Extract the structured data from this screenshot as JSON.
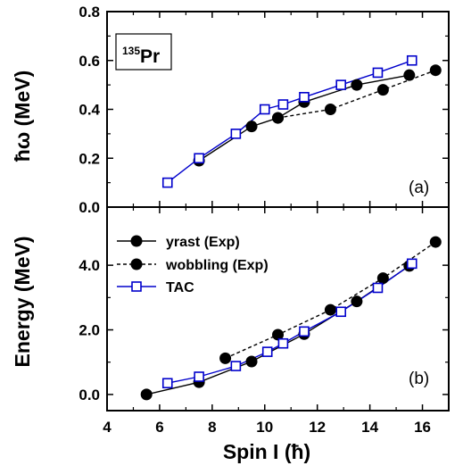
{
  "chart_data": [
    {
      "type": "line",
      "panel_label": "(a)",
      "ylabel": "ħω (MeV)",
      "xlim": [
        4,
        17
      ],
      "ylim": [
        0.0,
        0.8
      ],
      "xticks": [
        "4",
        "6",
        "8",
        "10",
        "12",
        "14",
        "16"
      ],
      "yticks": [
        "0.0",
        "0.2",
        "0.4",
        "0.6",
        "0.8"
      ],
      "nucleus": {
        "mass": "135",
        "symbol": "Pr"
      },
      "series": [
        {
          "key": "yrast",
          "color": "#000000",
          "marker": "filled-circle",
          "line": "solid",
          "x": [
            7.5,
            9.5,
            10.5,
            11.5,
            13.5,
            15.5
          ],
          "y": [
            0.19,
            0.33,
            0.365,
            0.43,
            0.5,
            0.54
          ]
        },
        {
          "key": "wobbling",
          "color": "#000000",
          "marker": "filled-circle",
          "line": "dashed",
          "x": [
            10.5,
            12.5,
            14.5,
            16.5
          ],
          "y": [
            0.365,
            0.4,
            0.48,
            0.56
          ]
        },
        {
          "key": "tac",
          "color": "#0000cc",
          "marker": "open-square",
          "line": "solid",
          "x": [
            6.3,
            7.5,
            8.9,
            10.0,
            10.7,
            11.5,
            12.9,
            14.3,
            15.6
          ],
          "y": [
            0.1,
            0.2,
            0.3,
            0.4,
            0.42,
            0.45,
            0.5,
            0.55,
            0.6
          ]
        }
      ]
    },
    {
      "type": "line",
      "panel_label": "(b)",
      "xlabel": "Spin I (ħ)",
      "ylabel": "Energy (MeV)",
      "xlim": [
        4,
        17
      ],
      "ylim": [
        -0.5,
        5.8
      ],
      "xticks": [
        "4",
        "6",
        "8",
        "10",
        "12",
        "14",
        "16"
      ],
      "yticks": [
        "0.0",
        "2.0",
        "4.0"
      ],
      "legend": {
        "placement": "top-left",
        "entries": [
          "yrast (Exp)",
          "wobbling (Exp)",
          "TAC"
        ]
      },
      "series": [
        {
          "key": "yrast",
          "name": "yrast (Exp)",
          "color": "#000000",
          "marker": "filled-circle",
          "line": "solid",
          "x": [
            5.5,
            7.5,
            9.5,
            11.5,
            13.5,
            15.5
          ],
          "y": [
            0.0,
            0.38,
            1.02,
            1.87,
            2.88,
            3.98
          ]
        },
        {
          "key": "wobbling",
          "name": "wobbling (Exp)",
          "color": "#000000",
          "marker": "filled-circle",
          "line": "dashed",
          "x": [
            8.5,
            10.5,
            12.5,
            14.5,
            16.5
          ],
          "y": [
            1.12,
            1.85,
            2.62,
            3.6,
            4.72
          ]
        },
        {
          "key": "tac",
          "name": "TAC",
          "color": "#0000cc",
          "marker": "open-square",
          "line": "solid",
          "x": [
            6.3,
            7.5,
            8.9,
            10.1,
            10.7,
            11.5,
            12.9,
            14.3,
            15.6
          ],
          "y": [
            0.35,
            0.55,
            0.88,
            1.32,
            1.58,
            1.95,
            2.56,
            3.3,
            4.05
          ]
        }
      ]
    }
  ]
}
